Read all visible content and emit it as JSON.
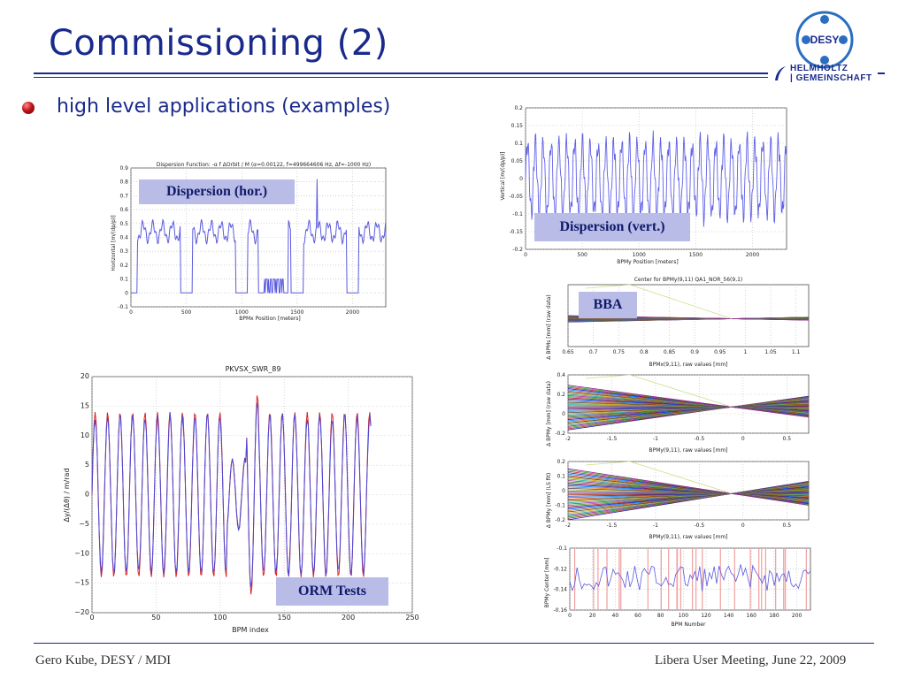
{
  "slide": {
    "title": "Commissioning (2)",
    "bullet": "high level applications  (examples)",
    "footer_left": "Gero Kube, DESY / MDI",
    "footer_right": "Libera User Meeting, June 22, 2009",
    "colors": {
      "title": "#1a2a8c",
      "caption_bg": "#b8bce6",
      "line_blue": "#5a5ae0",
      "line_red": "#e02020"
    }
  },
  "logo": {
    "desy": "DESY",
    "helmholtz": "HELMHOLTZ",
    "gemeinschaft": "| GEMEINSCHAFT"
  },
  "captions": {
    "dispersion_hor": "Dispersion (hor.)",
    "dispersion_vert": "Dispersion (vert.)",
    "bba": "BBA",
    "orm": "ORM Tests"
  },
  "chart_data": [
    {
      "type": "line",
      "id": "dispersion_hor",
      "title": "Dispersion Function: -α f ΔOrbit / M  (α=0.00122, f=499664606 Hz, Δf=-1000 Hz)",
      "xlabel": "BPMx Position [meters]",
      "ylabel": "Horizontal [m/(dp/p)]",
      "xlim": [
        0,
        2300
      ],
      "ylim": [
        -0.1,
        0.9
      ],
      "xticks": [
        "0",
        "500",
        "1000",
        "1500",
        "2000"
      ],
      "yticks": [
        "-0.1",
        "0",
        "0.1",
        "0.2",
        "0.3",
        "0.4",
        "0.5",
        "0.6",
        "0.7",
        "0.8",
        "0.9"
      ]
    },
    {
      "type": "line",
      "id": "dispersion_vert",
      "xlabel": "BPMy Position [meters]",
      "ylabel": "Vertical [m/(dp/p)]",
      "xlim": [
        0,
        2300
      ],
      "ylim": [
        -0.2,
        0.2
      ],
      "xticks": [
        "0",
        "500",
        "1000",
        "1500",
        "2000"
      ],
      "yticks": [
        "-0.2",
        "-0.15",
        "-0.1",
        "-0.05",
        "0",
        "0.05",
        "0.1",
        "0.15",
        "0.2"
      ]
    },
    {
      "type": "line",
      "id": "orm",
      "title": "PKVSX_SWR_89",
      "xlabel": "BPM index",
      "ylabel": "Δy/(Δθ) / m/rad",
      "xlim": [
        0,
        250
      ],
      "ylim": [
        -20,
        20
      ],
      "xticks": [
        "0",
        "50",
        "100",
        "150",
        "200",
        "250"
      ],
      "yticks": [
        "−20",
        "−15",
        "−10",
        "−5",
        "0",
        "5",
        "10",
        "15",
        "20"
      ]
    },
    {
      "type": "line",
      "id": "bba_1",
      "title": "Center for BPMy(9,11) QA1_NOR_56(9,1)",
      "xlabel": "BPMx(9,11), raw values [mm]",
      "ylabel": "Δ BPMs [mm] (raw data)",
      "xticks": [
        "0.65",
        "0.7",
        "0.75",
        "0.8",
        "0.85",
        "0.9",
        "0.95",
        "1",
        "1.05",
        "1.1"
      ]
    },
    {
      "type": "line",
      "id": "bba_2",
      "xlabel": "BPMy(9,11), raw values [mm]",
      "ylabel": "Δ BPMy [mm] (raw data)",
      "xticks": [
        "-2",
        "-1.5",
        "-1",
        "-0.5",
        "0",
        "0.5"
      ],
      "yticks": [
        "0.4",
        "0.2",
        "0",
        "-0.2"
      ]
    },
    {
      "type": "line",
      "id": "bba_3",
      "xlabel": "BPMy(9,11), raw values [mm]",
      "ylabel": "Δ BPMy [mm] (LS fit)",
      "xticks": [
        "-2",
        "-1.5",
        "-1",
        "-0.5",
        "0",
        "0.5"
      ],
      "yticks": [
        "0.2",
        "0.1",
        "0",
        "-0.1",
        "-0.2"
      ]
    },
    {
      "type": "line",
      "id": "bba_4",
      "xlabel": "BPM Number",
      "ylabel": "BPMy Center [mm]",
      "xticks": [
        "0",
        "20",
        "40",
        "60",
        "80",
        "100",
        "120",
        "140",
        "160",
        "180",
        "200"
      ],
      "yticks": [
        "-0.1",
        "-0.12",
        "-0.14",
        "-0.16"
      ]
    }
  ]
}
